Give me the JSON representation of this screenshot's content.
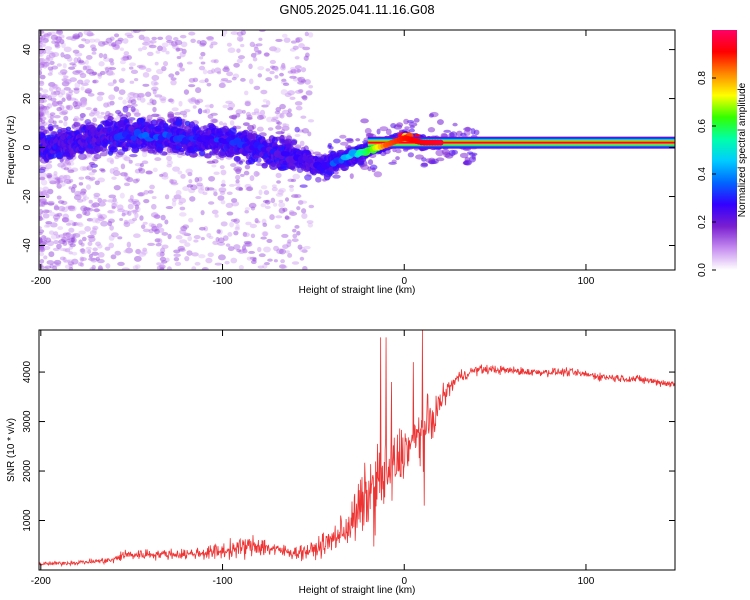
{
  "chart_data": [
    {
      "type": "heatmap",
      "title": "GN05.2025.041.11.16.G08",
      "xlabel": "Height of straight line (km)",
      "ylabel": "Frequency (Hz)",
      "xlim": [
        -201,
        149
      ],
      "ylim": [
        -50,
        48
      ],
      "xticks": [
        -200,
        -100,
        0,
        100
      ],
      "yticks": [
        -40,
        -20,
        0,
        20,
        40
      ],
      "colorbar": {
        "label": "Normalized spectral amplitude",
        "range": [
          0,
          1
        ],
        "ticks": [
          "0.0",
          "0.2",
          "0.4",
          "0.6",
          "0.8"
        ],
        "colors": [
          "#ffffff",
          "#c58cf0",
          "#7a1fd0",
          "#3300ff",
          "#0066ff",
          "#00ccff",
          "#00ffaa",
          "#33ff00",
          "#ffff00",
          "#ff8800",
          "#ff0000",
          "#ff0066"
        ]
      },
      "ridge": {
        "x": [
          -200,
          -160,
          -140,
          -120,
          -100,
          -80,
          -65,
          -55,
          -45,
          -38,
          -30,
          -20,
          -10,
          0,
          10,
          20,
          40,
          60,
          100,
          149
        ],
        "frequency": [
          0,
          5,
          5,
          4,
          3,
          0,
          -3,
          -5,
          -8,
          -6,
          -4,
          -1,
          1,
          4,
          2,
          2,
          2,
          2,
          2,
          2
        ],
        "amplitude": [
          0.15,
          0.3,
          0.35,
          0.33,
          0.3,
          0.28,
          0.26,
          0.25,
          0.26,
          0.35,
          0.45,
          0.6,
          0.85,
          0.9,
          0.92,
          0.95,
          0.96,
          0.96,
          0.96,
          0.95
        ]
      }
    },
    {
      "type": "line",
      "xlabel": "Height of straight line (km)",
      "ylabel": "SNR (10 * v/v)",
      "xlim": [
        -201,
        149
      ],
      "ylim": [
        0,
        4850
      ],
      "xticks": [
        -200,
        -100,
        0,
        100
      ],
      "yticks": [
        1000,
        2000,
        3000,
        4000
      ],
      "color": "#ee3333",
      "envelope": {
        "x": [
          -200,
          -180,
          -160,
          -155,
          -140,
          -120,
          -100,
          -90,
          -80,
          -70,
          -60,
          -50,
          -40,
          -30,
          -25,
          -20,
          -15,
          -10,
          -5,
          0,
          5,
          10,
          15,
          20,
          25,
          30,
          40,
          50,
          70,
          90,
          110,
          130,
          149
        ],
        "mean": [
          120,
          150,
          200,
          300,
          320,
          320,
          380,
          450,
          500,
          400,
          350,
          400,
          600,
          900,
          1200,
          1500,
          1700,
          1900,
          2100,
          2400,
          2600,
          2800,
          3000,
          3400,
          3700,
          3900,
          4050,
          4050,
          4000,
          4000,
          3900,
          3850,
          3750
        ],
        "jitter": [
          60,
          70,
          100,
          180,
          150,
          150,
          250,
          300,
          350,
          200,
          200,
          250,
          400,
          600,
          900,
          1100,
          1300,
          1200,
          1100,
          800,
          700,
          900,
          700,
          400,
          250,
          180,
          150,
          130,
          120,
          120,
          120,
          120,
          120
        ]
      },
      "spikes": [
        {
          "x": -13,
          "y": 4700
        },
        {
          "x": -10,
          "y": 4700
        },
        {
          "x": -7,
          "y": 3800
        },
        {
          "x": 5,
          "y": 4200
        },
        {
          "x": 10,
          "y": 4850
        },
        {
          "x": 11,
          "y": 1300
        }
      ]
    }
  ]
}
